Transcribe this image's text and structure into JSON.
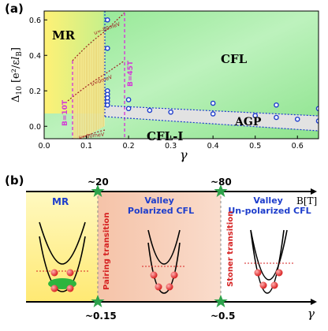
{
  "figure": {
    "panel_a_label": "(a)",
    "panel_b_label": "(b)"
  },
  "chart_data": {
    "type": "phase_diagram",
    "title": "",
    "xlabel": "γ",
    "ylabel": "Δ10 [e²/ε lB]",
    "xlim": [
      0,
      0.65
    ],
    "ylim": [
      -0.07,
      0.65
    ],
    "xticks": [
      "0.0",
      "0.1",
      "0.2",
      "0.3",
      "0.4",
      "0.5",
      "0.6"
    ],
    "yticks": [
      "0.0",
      "0.2",
      "0.4",
      "0.6"
    ],
    "regions": [
      "MR",
      "CFL",
      "AGP",
      "CFL-I"
    ],
    "annotations": {
      "field_lines": [
        "B=10T",
        "B=45T"
      ],
      "u_labels": [
        "u=-80meV",
        "u=0meV",
        "u=80meV"
      ]
    },
    "series": [
      {
        "x": [
          0.15,
          0.15,
          0.15,
          0.15,
          0.15,
          0.15,
          0.15
        ],
        "y": [
          0.6,
          0.44,
          0.2,
          0.18,
          0.16,
          0.14,
          0.12
        ]
      },
      {
        "x": [
          0.15,
          0.2,
          0.25,
          0.3,
          0.4,
          0.5,
          0.55,
          0.6,
          0.65
        ],
        "y": [
          0.12,
          0.1,
          0.09,
          0.08,
          0.07,
          0.06,
          0.05,
          0.04,
          0.03
        ]
      },
      {
        "x": [
          0.15,
          0.2,
          0.4,
          0.55,
          0.65
        ],
        "y": [
          0.16,
          0.15,
          0.13,
          0.12,
          0.1
        ]
      }
    ],
    "ylabel_main": "Δ",
    "ylabel_sub": "10",
    "ylabel_units": "[e²/ε",
    "ylabel_sub2": "B",
    "ylabel_tail": "]"
  },
  "schematic": {
    "b_axis_label": "B[T]",
    "gamma_axis_label": "γ",
    "top_ticks": [
      "~20",
      "~80"
    ],
    "bottom_ticks": [
      "~0.15",
      "~0.5"
    ],
    "phases": [
      "MR",
      "Valley\nPolarized CFL",
      "Valley\nUn-polarized  CFL"
    ],
    "transitions": [
      "Pairing transition",
      "Stoner transition"
    ],
    "colors": {
      "mr_bg": "#fff4a8",
      "valley_bg": "#f5c4a6",
      "accent_blue": "#1d3dcc",
      "accent_red": "#d62222",
      "green_star": "#2da24b"
    }
  }
}
